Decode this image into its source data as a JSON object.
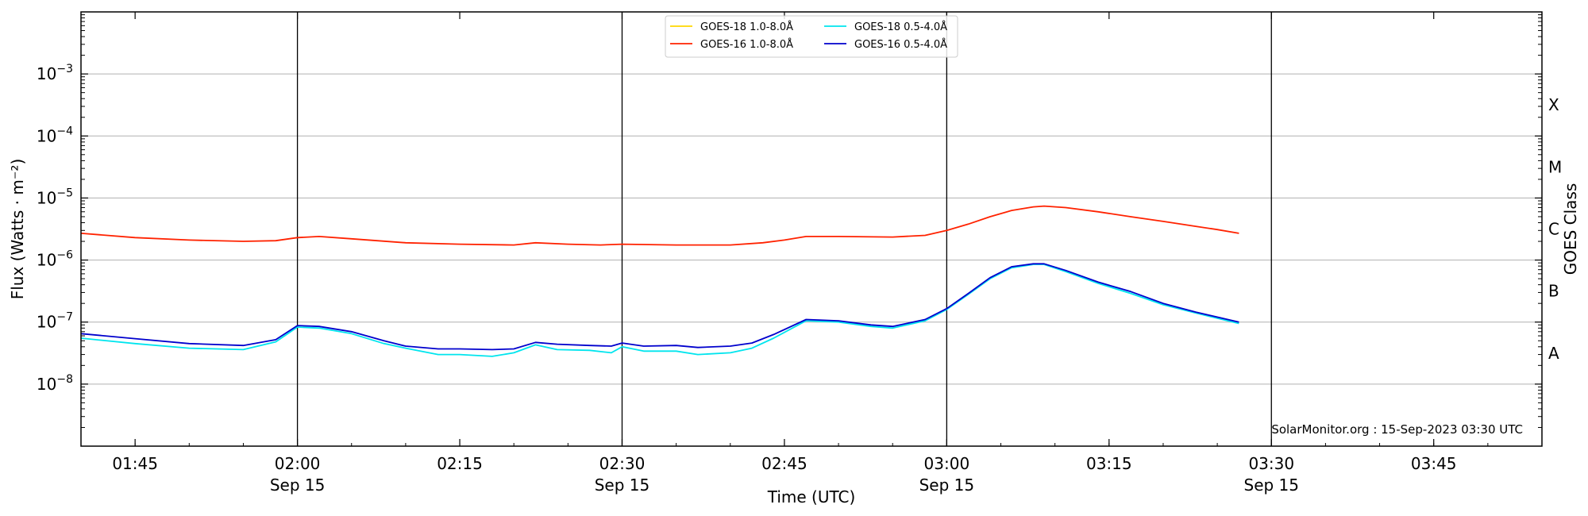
{
  "chart_data": {
    "type": "line",
    "title": "",
    "xlabel": "Time (UTC)",
    "ylabel": "Flux (Watts · m⁻²)",
    "y2label": "GOES Class",
    "yscale": "log",
    "xlim": [
      "01:40",
      "03:55"
    ],
    "ylim": [
      1e-09,
      0.01
    ],
    "grid": "horizontal",
    "legend_position": "top-center",
    "x_ticks": [
      "01:45",
      "02:00",
      "02:15",
      "02:30",
      "02:45",
      "03:00",
      "03:15",
      "03:30",
      "03:45"
    ],
    "x_tick_dates": {
      "02:00": "Sep 15",
      "02:30": "Sep 15",
      "03:00": "Sep 15",
      "03:30": "Sep 15"
    },
    "y_ticks": [
      {
        "value": 1e-08,
        "mantissa": "10",
        "exp": "−8"
      },
      {
        "value": 1e-07,
        "mantissa": "10",
        "exp": "−7"
      },
      {
        "value": 1e-06,
        "mantissa": "10",
        "exp": "−6"
      },
      {
        "value": 1e-05,
        "mantissa": "10",
        "exp": "−5"
      },
      {
        "value": 0.0001,
        "mantissa": "10",
        "exp": "−4"
      },
      {
        "value": 0.001,
        "mantissa": "10",
        "exp": "−3"
      }
    ],
    "goes_classes": [
      {
        "label": "A",
        "value": 3.16e-08
      },
      {
        "label": "B",
        "value": 3.16e-07
      },
      {
        "label": "C",
        "value": 3.16e-06
      },
      {
        "label": "M",
        "value": 3.16e-05
      },
      {
        "label": "X",
        "value": 0.000316
      }
    ],
    "vlines": [
      "02:00",
      "02:30",
      "03:00",
      "03:30"
    ],
    "annotation": "SolarMonitor.org : 15-Sep-2023 03:30 UTC",
    "series": [
      {
        "name": "GOES-18 1.0-8.0Å",
        "color": "#FFD700",
        "points": []
      },
      {
        "name": "GOES-16 1.0-8.0Å",
        "color": "#FF2200",
        "points": [
          [
            "01:40",
            2.7e-06
          ],
          [
            "01:45",
            2.3e-06
          ],
          [
            "01:50",
            2.1e-06
          ],
          [
            "01:55",
            2e-06
          ],
          [
            "01:58",
            2.05e-06
          ],
          [
            "02:00",
            2.3e-06
          ],
          [
            "02:02",
            2.4e-06
          ],
          [
            "02:05",
            2.2e-06
          ],
          [
            "02:10",
            1.9e-06
          ],
          [
            "02:15",
            1.8e-06
          ],
          [
            "02:20",
            1.75e-06
          ],
          [
            "02:22",
            1.9e-06
          ],
          [
            "02:25",
            1.8e-06
          ],
          [
            "02:28",
            1.75e-06
          ],
          [
            "02:30",
            1.8e-06
          ],
          [
            "02:35",
            1.75e-06
          ],
          [
            "02:40",
            1.75e-06
          ],
          [
            "02:43",
            1.9e-06
          ],
          [
            "02:45",
            2.1e-06
          ],
          [
            "02:47",
            2.4e-06
          ],
          [
            "02:50",
            2.4e-06
          ],
          [
            "02:55",
            2.35e-06
          ],
          [
            "02:58",
            2.5e-06
          ],
          [
            "03:00",
            3e-06
          ],
          [
            "03:02",
            3.8e-06
          ],
          [
            "03:04",
            5e-06
          ],
          [
            "03:06",
            6.3e-06
          ],
          [
            "03:08",
            7.2e-06
          ],
          [
            "03:09",
            7.4e-06
          ],
          [
            "03:11",
            7e-06
          ],
          [
            "03:14",
            6e-06
          ],
          [
            "03:17",
            5e-06
          ],
          [
            "03:20",
            4.2e-06
          ],
          [
            "03:23",
            3.5e-06
          ],
          [
            "03:25",
            3.1e-06
          ],
          [
            "03:27",
            2.7e-06
          ]
        ]
      },
      {
        "name": "GOES-18 0.5-4.0Å",
        "color": "#00E5EE",
        "points": [
          [
            "01:40",
            5.5e-08
          ],
          [
            "01:45",
            4.5e-08
          ],
          [
            "01:50",
            3.8e-08
          ],
          [
            "01:55",
            3.6e-08
          ],
          [
            "01:58",
            4.8e-08
          ],
          [
            "02:00",
            8.3e-08
          ],
          [
            "02:02",
            8e-08
          ],
          [
            "02:05",
            6.5e-08
          ],
          [
            "02:08",
            4.5e-08
          ],
          [
            "02:10",
            3.8e-08
          ],
          [
            "02:13",
            3e-08
          ],
          [
            "02:15",
            3e-08
          ],
          [
            "02:18",
            2.8e-08
          ],
          [
            "02:20",
            3.2e-08
          ],
          [
            "02:22",
            4.3e-08
          ],
          [
            "02:24",
            3.6e-08
          ],
          [
            "02:27",
            3.5e-08
          ],
          [
            "02:29",
            3.2e-08
          ],
          [
            "02:30",
            4e-08
          ],
          [
            "02:32",
            3.4e-08
          ],
          [
            "02:35",
            3.4e-08
          ],
          [
            "02:37",
            3e-08
          ],
          [
            "02:40",
            3.2e-08
          ],
          [
            "02:42",
            3.8e-08
          ],
          [
            "02:44",
            5.5e-08
          ],
          [
            "02:47",
            1.05e-07
          ],
          [
            "02:50",
            1e-07
          ],
          [
            "02:53",
            8.5e-08
          ],
          [
            "02:55",
            8e-08
          ],
          [
            "02:58",
            1.05e-07
          ],
          [
            "03:00",
            1.6e-07
          ],
          [
            "03:02",
            2.8e-07
          ],
          [
            "03:04",
            5e-07
          ],
          [
            "03:06",
            7.5e-07
          ],
          [
            "03:08",
            8.5e-07
          ],
          [
            "03:09",
            8.5e-07
          ],
          [
            "03:11",
            6.5e-07
          ],
          [
            "03:14",
            4.2e-07
          ],
          [
            "03:17",
            2.9e-07
          ],
          [
            "03:20",
            1.9e-07
          ],
          [
            "03:23",
            1.4e-07
          ],
          [
            "03:27",
            9.5e-08
          ]
        ]
      },
      {
        "name": "GOES-16 0.5-4.0Å",
        "color": "#0000CD",
        "points": [
          [
            "01:40",
            6.5e-08
          ],
          [
            "01:45",
            5.4e-08
          ],
          [
            "01:50",
            4.5e-08
          ],
          [
            "01:55",
            4.2e-08
          ],
          [
            "01:58",
            5.2e-08
          ],
          [
            "02:00",
            8.8e-08
          ],
          [
            "02:02",
            8.5e-08
          ],
          [
            "02:05",
            7e-08
          ],
          [
            "02:08",
            5e-08
          ],
          [
            "02:10",
            4.1e-08
          ],
          [
            "02:13",
            3.7e-08
          ],
          [
            "02:15",
            3.7e-08
          ],
          [
            "02:18",
            3.6e-08
          ],
          [
            "02:20",
            3.7e-08
          ],
          [
            "02:22",
            4.7e-08
          ],
          [
            "02:24",
            4.4e-08
          ],
          [
            "02:27",
            4.2e-08
          ],
          [
            "02:29",
            4.1e-08
          ],
          [
            "02:30",
            4.6e-08
          ],
          [
            "02:32",
            4.1e-08
          ],
          [
            "02:35",
            4.2e-08
          ],
          [
            "02:37",
            3.9e-08
          ],
          [
            "02:40",
            4.1e-08
          ],
          [
            "02:42",
            4.6e-08
          ],
          [
            "02:44",
            6.3e-08
          ],
          [
            "02:47",
            1.1e-07
          ],
          [
            "02:50",
            1.05e-07
          ],
          [
            "02:53",
            9e-08
          ],
          [
            "02:55",
            8.5e-08
          ],
          [
            "02:58",
            1.1e-07
          ],
          [
            "03:00",
            1.65e-07
          ],
          [
            "03:02",
            2.9e-07
          ],
          [
            "03:04",
            5.2e-07
          ],
          [
            "03:06",
            7.8e-07
          ],
          [
            "03:08",
            8.7e-07
          ],
          [
            "03:09",
            8.7e-07
          ],
          [
            "03:11",
            6.8e-07
          ],
          [
            "03:14",
            4.4e-07
          ],
          [
            "03:17",
            3.1e-07
          ],
          [
            "03:20",
            2e-07
          ],
          [
            "03:23",
            1.45e-07
          ],
          [
            "03:27",
            1e-07
          ]
        ]
      }
    ]
  }
}
